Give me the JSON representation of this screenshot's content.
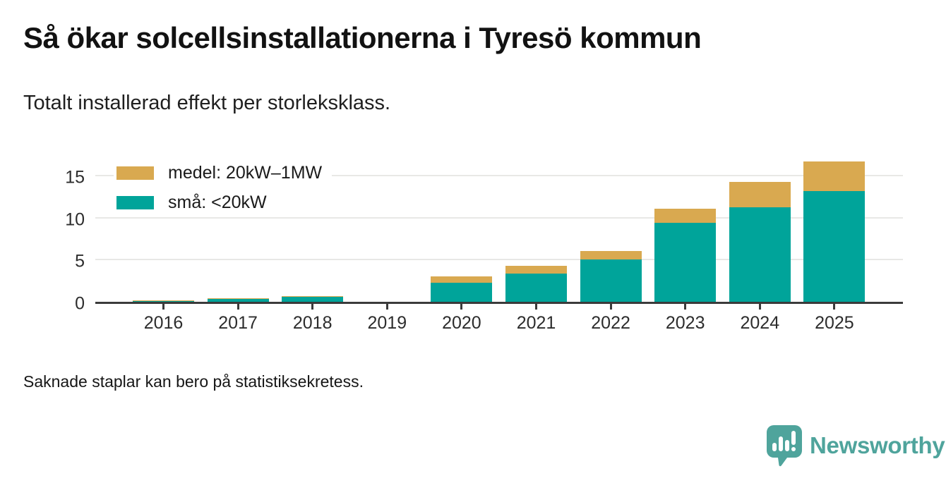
{
  "header": {
    "title": "Så ökar solcellsinstallationerna i Tyresö kommun",
    "subtitle": "Totalt installerad effekt per storleksklass."
  },
  "footer": {
    "note": "Saknade staplar kan bero på statistiksekretess."
  },
  "logo": {
    "text": "Newsworthy"
  },
  "colors": {
    "teal": "#00A49A",
    "gold": "#D9A950",
    "axis": "#3b3b3b",
    "grid": "#e8e8e6",
    "text": "#1a1a1a",
    "logo_teal": "#4FA49C"
  },
  "chart_data": {
    "type": "bar",
    "stacked": true,
    "title": "Så ökar solcellsinstallationerna i Tyresö kommun",
    "subtitle": "Totalt installerad effekt per storleksklass.",
    "categories": [
      "2016",
      "2017",
      "2018",
      "2019",
      "2020",
      "2021",
      "2022",
      "2023",
      "2024",
      "2025"
    ],
    "series": [
      {
        "name": "medel: 20kW–1MW",
        "color_key": "gold",
        "values": [
          0.12,
          0.04,
          0.12,
          0,
          0.75,
          0.95,
          1.05,
          1.7,
          3.0,
          3.5
        ]
      },
      {
        "name": "små: <20kW",
        "color_key": "teal",
        "values": [
          0.05,
          0.38,
          0.55,
          0,
          2.3,
          3.35,
          5.0,
          9.4,
          11.25,
          13.2
        ]
      }
    ],
    "stack_totals": [
      0.17,
      0.42,
      0.67,
      0,
      3.05,
      4.3,
      6.05,
      11.1,
      14.25,
      16.7
    ],
    "missing_categories": [
      "2019"
    ],
    "xlabel": "",
    "ylabel": "",
    "yticks": [
      0,
      5,
      10,
      15
    ],
    "ylim": [
      0,
      18.1
    ],
    "grid": true,
    "legend_position": "top-left"
  }
}
